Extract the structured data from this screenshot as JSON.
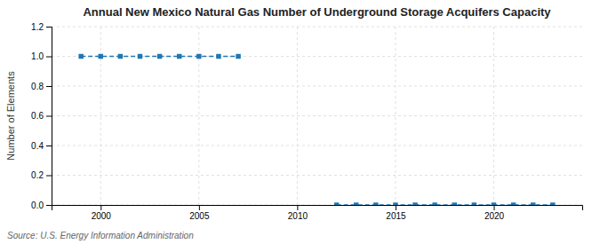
{
  "chart_data": {
    "type": "line",
    "title": "Annual New Mexico Natural Gas Number of Underground Storage Acquifers Capacity",
    "ylabel": "Number of Elements",
    "source": "Source: U.S. Energy Information Administration",
    "x": [
      1999,
      2000,
      2001,
      2002,
      2003,
      2004,
      2005,
      2006,
      2007,
      2012,
      2013,
      2014,
      2015,
      2016,
      2017,
      2018,
      2019,
      2020,
      2021,
      2022,
      2023
    ],
    "series": [
      {
        "values": [
          1.0,
          1.0,
          1.0,
          1.0,
          1.0,
          1.0,
          1.0,
          1.0,
          1.0,
          null,
          null,
          null,
          null,
          null,
          null,
          null,
          null,
          null,
          null,
          null,
          null
        ]
      },
      {
        "values": [
          null,
          null,
          null,
          null,
          null,
          null,
          null,
          null,
          null,
          0.0,
          0.0,
          0.0,
          0.0,
          0.0,
          0.0,
          0.0,
          0.0,
          0.0,
          0.0,
          0.0,
          0.0
        ]
      }
    ],
    "xlim": [
      1997.5,
      2024.5
    ],
    "ylim": [
      0.0,
      1.2
    ],
    "xticks": [
      2000,
      2005,
      2010,
      2015,
      2020
    ],
    "yticks": [
      {
        "value": 0.0,
        "label": "0.0"
      },
      0.2,
      0.4,
      0.6,
      0.8,
      {
        "value": 1.0,
        "label": "1.0"
      },
      1.2
    ],
    "grid": true,
    "marker": "square",
    "line_style": "dashed"
  }
}
